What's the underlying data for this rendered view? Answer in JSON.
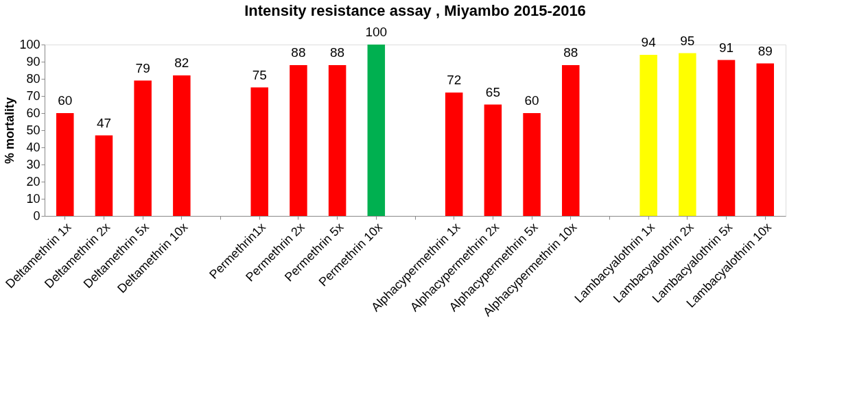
{
  "chart_data": {
    "type": "bar",
    "title": "Intensity resistance assay , Miyambo 2015-2016",
    "ylabel": "% mortality",
    "categories": [
      "Deltamethrin 1x",
      "Deltamethrin 2x",
      "Deltamethrin 5x",
      "Deltamethrin 10x",
      null,
      "Permethrin1x",
      "Permethrin 2x",
      "Permethrin 5x",
      "Permethrin 10x",
      null,
      "Alphacypermethrin 1x",
      "Alphacypermethrin 2x",
      "Alphacypermethrin 5x",
      "Alphacypermethrin 10x",
      null,
      "Lambacyalothrin 1x",
      "Lambacyalothrin 2x",
      "Lambacyalothrin 5x",
      "Lambacyalothrin 10x"
    ],
    "values": [
      60,
      47,
      79,
      82,
      null,
      75,
      88,
      88,
      100,
      null,
      72,
      65,
      60,
      88,
      null,
      94,
      95,
      91,
      89
    ],
    "colors": [
      "#ff0000",
      "#ff0000",
      "#ff0000",
      "#ff0000",
      null,
      "#ff0000",
      "#ff0000",
      "#ff0000",
      "#00b050",
      null,
      "#ff0000",
      "#ff0000",
      "#ff0000",
      "#ff0000",
      null,
      "#ffff00",
      "#ffff00",
      "#ff0000",
      "#ff0000"
    ],
    "ylim": [
      0,
      100
    ],
    "yticks": [
      0,
      10,
      20,
      30,
      40,
      50,
      60,
      70,
      80,
      90,
      100
    ],
    "data_labels": true,
    "grid": false
  }
}
